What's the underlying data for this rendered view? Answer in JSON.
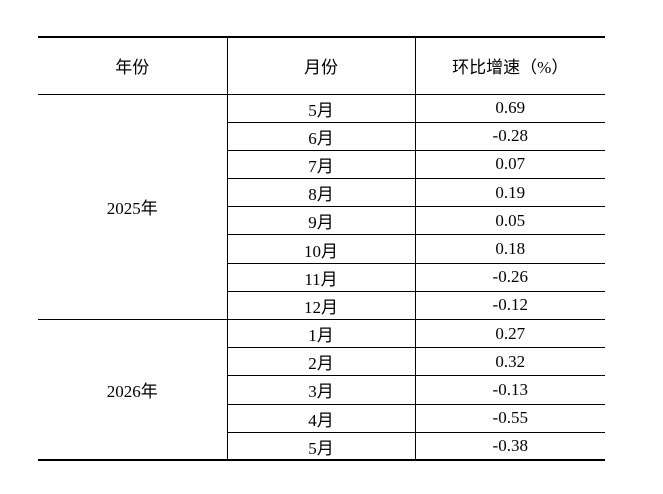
{
  "table": {
    "headers": {
      "year": "年份",
      "month": "月份",
      "mom": "环比增速（%）"
    },
    "groups": [
      {
        "year": "2025年",
        "rows": [
          {
            "month": "5月",
            "value": "0.69"
          },
          {
            "month": "6月",
            "value": "-0.28"
          },
          {
            "month": "7月",
            "value": "0.07"
          },
          {
            "month": "8月",
            "value": "0.19"
          },
          {
            "month": "9月",
            "value": "0.05"
          },
          {
            "month": "10月",
            "value": "0.18"
          },
          {
            "month": "11月",
            "value": "-0.26"
          },
          {
            "month": "12月",
            "value": "-0.12"
          }
        ]
      },
      {
        "year": "2026年",
        "rows": [
          {
            "month": "1月",
            "value": "0.27"
          },
          {
            "month": "2月",
            "value": "0.32"
          },
          {
            "month": "3月",
            "value": "-0.13"
          },
          {
            "month": "4月",
            "value": "-0.55"
          },
          {
            "month": "5月",
            "value": "-0.38"
          }
        ]
      }
    ]
  }
}
